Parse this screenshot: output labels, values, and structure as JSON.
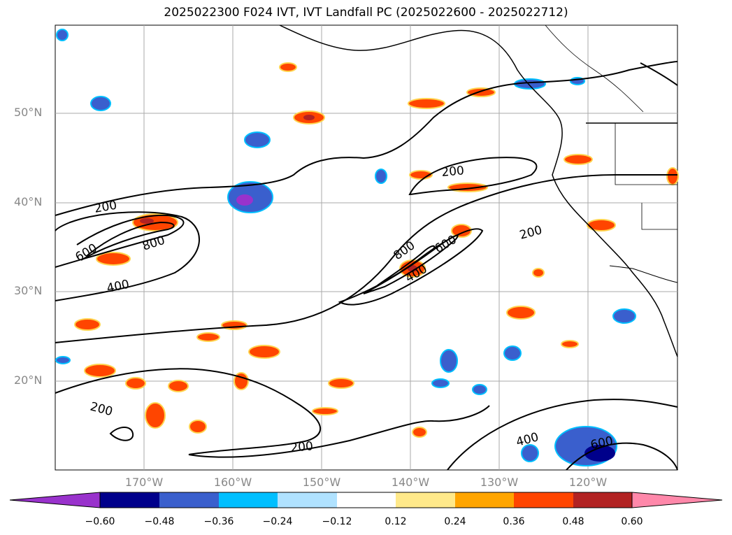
{
  "title": "2025022300 F024 IVT, IVT Landfall PC (2025022600 - 2025022712)",
  "axes": {
    "lat_labels": [
      "50°N",
      "40°N",
      "30°N",
      "20°N"
    ],
    "lon_labels": [
      "170°W",
      "160°W",
      "150°W",
      "140°W",
      "130°W",
      "120°W"
    ]
  },
  "map_extent": {
    "lon_min": -180,
    "lon_max": -110,
    "lat_min": 10,
    "lat_max": 60
  },
  "contour_labels": [
    "200",
    "200",
    "200",
    "200",
    "200",
    "400",
    "400",
    "400",
    "600",
    "600",
    "600",
    "800",
    "800"
  ],
  "colorbar": {
    "ticks": [
      "−0.60",
      "−0.48",
      "−0.36",
      "−0.24",
      "−0.12",
      "0.12",
      "0.24",
      "0.36",
      "0.48",
      "0.60"
    ],
    "colors": [
      "#9932cc",
      "#00008b",
      "#3a5fcd",
      "#00bfff",
      "#b0e2ff",
      "#ffffff",
      "#ffe98a",
      "#ffa500",
      "#ff4500",
      "#b22222",
      "#ff88aa"
    ]
  }
}
